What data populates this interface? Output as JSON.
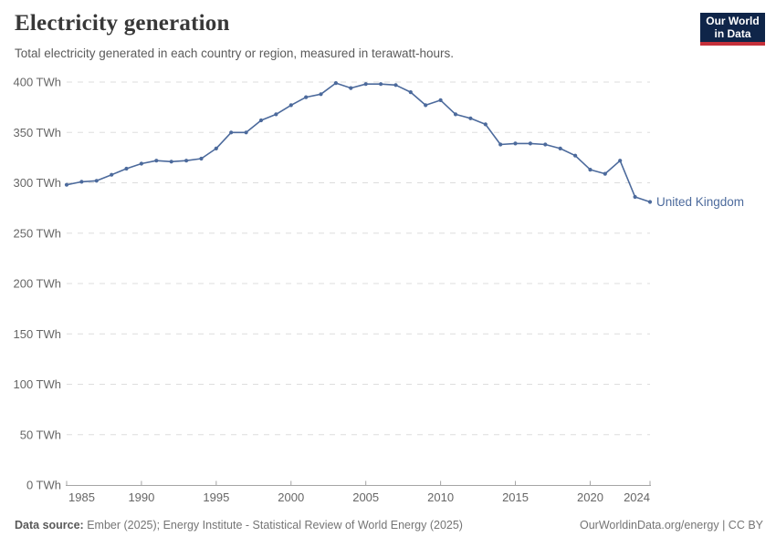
{
  "header": {
    "title": "Electricity generation",
    "subtitle": "Total electricity generated in each country or region, measured in terawatt-hours."
  },
  "logo": {
    "line1": "Our World",
    "line2": "in Data",
    "bg_color": "#0f2549",
    "accent_color": "#c5303a"
  },
  "chart_data": {
    "type": "line",
    "title": "Electricity generation",
    "subtitle": "Total electricity generated in each country or region, measured in terawatt-hours.",
    "unit": "TWh",
    "xlim": [
      1985,
      2024
    ],
    "ylim": [
      0,
      400
    ],
    "grid": "horizontal-dashed",
    "legend_position": "end-of-line",
    "xticks": [
      1985,
      1990,
      1995,
      2000,
      2005,
      2010,
      2015,
      2020,
      2024
    ],
    "xtick_labels": [
      "1985",
      "1990",
      "1995",
      "2000",
      "2005",
      "2010",
      "2015",
      "2020",
      "2024"
    ],
    "yticks": [
      0,
      50,
      100,
      150,
      200,
      250,
      300,
      350,
      400
    ],
    "ytick_labels": [
      "0 TWh",
      "50 TWh",
      "100 TWh",
      "150 TWh",
      "200 TWh",
      "250 TWh",
      "300 TWh",
      "350 TWh",
      "400 TWh"
    ],
    "series": [
      {
        "name": "United Kingdom",
        "color": "#4c6a9c",
        "x": [
          1985,
          1986,
          1987,
          1988,
          1989,
          1990,
          1991,
          1992,
          1993,
          1994,
          1995,
          1996,
          1997,
          1998,
          1999,
          2000,
          2001,
          2002,
          2003,
          2004,
          2005,
          2006,
          2007,
          2008,
          2009,
          2010,
          2011,
          2012,
          2013,
          2014,
          2015,
          2016,
          2017,
          2018,
          2019,
          2020,
          2021,
          2022,
          2023,
          2024
        ],
        "values": [
          298,
          301,
          302,
          308,
          314,
          319,
          322,
          321,
          322,
          324,
          334,
          350,
          350,
          362,
          368,
          377,
          385,
          388,
          399,
          394,
          398,
          398,
          397,
          390,
          377,
          382,
          368,
          364,
          358,
          338,
          339,
          339,
          338,
          334,
          327,
          313,
          309,
          322,
          286,
          281
        ]
      }
    ]
  },
  "colors": {
    "line": "#4c6a9c",
    "grid": "#dddddd",
    "axis": "#a5a5a5",
    "tick_label": "#666666",
    "title": "#383838",
    "subtitle": "#5b5b5b",
    "footer": "#757575"
  },
  "footer": {
    "source_label": "Data source:",
    "source_text": " Ember (2025); Energy Institute - Statistical Review of World Energy (2025)",
    "credit": "OurWorldinData.org/energy | CC BY"
  }
}
